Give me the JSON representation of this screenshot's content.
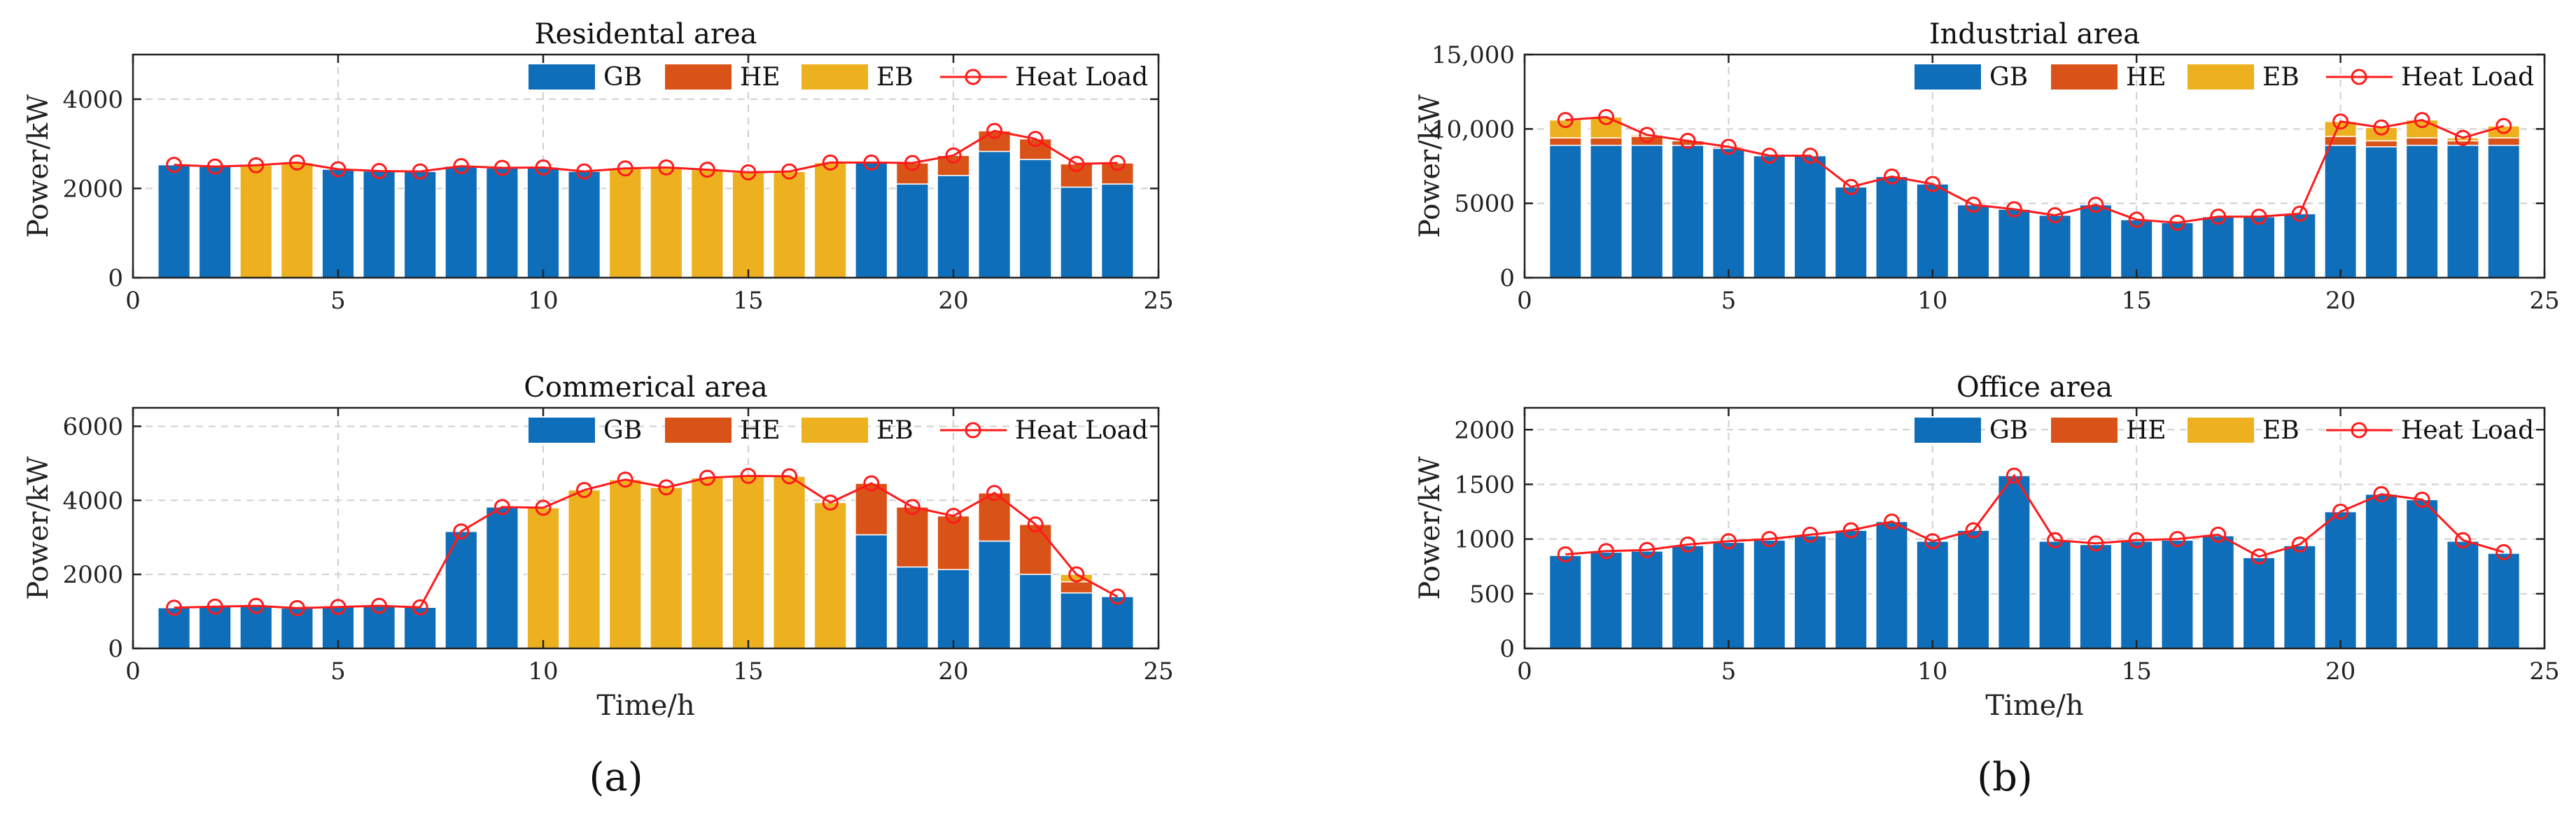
{
  "chart_data": [
    {
      "type": "bar",
      "title": "Residental area",
      "xlabel": "",
      "ylabel": "Power/kW",
      "xlim": [
        0,
        25
      ],
      "ylim": [
        0,
        5000
      ],
      "xticks": [
        0,
        5,
        10,
        15,
        20,
        25
      ],
      "xtick_labels": [
        "0",
        "5",
        "10",
        "15",
        "20",
        "25"
      ],
      "yticks": [
        0,
        2000,
        4000
      ],
      "ytick_labels": [
        "0",
        "2000",
        "4000"
      ],
      "x": [
        1,
        2,
        3,
        4,
        5,
        6,
        7,
        8,
        9,
        10,
        11,
        12,
        13,
        14,
        15,
        16,
        17,
        18,
        19,
        20,
        21,
        22,
        23,
        24
      ],
      "series": [
        {
          "name": "GB",
          "values": [
            2530,
            2490,
            0,
            0,
            2430,
            2390,
            2380,
            2500,
            2460,
            2470,
            2380,
            0,
            0,
            0,
            0,
            0,
            0,
            2580,
            2100,
            2290,
            2830,
            2650,
            2030,
            2100
          ]
        },
        {
          "name": "HE",
          "values": [
            0,
            0,
            0,
            0,
            0,
            0,
            0,
            0,
            0,
            0,
            0,
            0,
            0,
            0,
            0,
            0,
            0,
            0,
            470,
            450,
            460,
            460,
            520,
            470
          ]
        },
        {
          "name": "EB",
          "values": [
            0,
            0,
            2520,
            2580,
            0,
            0,
            0,
            0,
            0,
            0,
            0,
            2450,
            2470,
            2420,
            2360,
            2380,
            2580,
            0,
            0,
            0,
            0,
            0,
            0,
            0
          ]
        }
      ],
      "heat_load": [
        2530,
        2490,
        2520,
        2580,
        2430,
        2390,
        2380,
        2500,
        2460,
        2470,
        2380,
        2450,
        2470,
        2420,
        2360,
        2380,
        2580,
        2580,
        2570,
        2740,
        3290,
        3110,
        2550,
        2570
      ],
      "legend": [
        "GB",
        "HE",
        "EB",
        "Heat Load"
      ],
      "legend_position": "top-right"
    },
    {
      "type": "bar",
      "title": "Industrial area",
      "xlabel": "",
      "ylabel": "Power/kW",
      "xlim": [
        0,
        25
      ],
      "ylim": [
        0,
        15000
      ],
      "xticks": [
        0,
        5,
        10,
        15,
        20,
        25
      ],
      "xtick_labels": [
        "0",
        "5",
        "10",
        "15",
        "20",
        "25"
      ],
      "yticks": [
        0,
        5000,
        10000,
        15000
      ],
      "ytick_labels": [
        "0",
        "5000",
        "10,000",
        "15,000"
      ],
      "x": [
        1,
        2,
        3,
        4,
        5,
        6,
        7,
        8,
        9,
        10,
        11,
        12,
        13,
        14,
        15,
        16,
        17,
        18,
        19,
        20,
        21,
        22,
        23,
        24
      ],
      "series": [
        {
          "name": "GB",
          "values": [
            8900,
            8900,
            8900,
            8900,
            8700,
            8200,
            8200,
            6100,
            6800,
            6300,
            4900,
            4600,
            4200,
            4900,
            3900,
            3700,
            4100,
            4100,
            4300,
            8900,
            8800,
            8900,
            8900,
            8900
          ]
        },
        {
          "name": "HE",
          "values": [
            500,
            500,
            600,
            300,
            100,
            0,
            0,
            0,
            0,
            0,
            0,
            0,
            0,
            0,
            0,
            0,
            0,
            0,
            0,
            600,
            400,
            500,
            300,
            500
          ]
        },
        {
          "name": "EB",
          "values": [
            1200,
            1400,
            100,
            0,
            0,
            0,
            0,
            0,
            0,
            0,
            0,
            0,
            0,
            0,
            0,
            0,
            0,
            0,
            0,
            1000,
            900,
            1200,
            200,
            800
          ]
        }
      ],
      "heat_load": [
        10600,
        10800,
        9600,
        9200,
        8800,
        8200,
        8200,
        6100,
        6800,
        6300,
        4900,
        4600,
        4200,
        4900,
        3900,
        3700,
        4100,
        4100,
        4300,
        10500,
        10100,
        10600,
        9400,
        10200
      ],
      "legend": [
        "GB",
        "HE",
        "EB",
        "Heat Load"
      ],
      "legend_position": "top-right"
    },
    {
      "type": "bar",
      "title": "Commerical area",
      "xlabel": "Time/h",
      "ylabel": "Power/kW",
      "xlim": [
        0,
        25
      ],
      "ylim": [
        0,
        6500
      ],
      "xticks": [
        0,
        5,
        10,
        15,
        20,
        25
      ],
      "xtick_labels": [
        "0",
        "5",
        "10",
        "15",
        "20",
        "25"
      ],
      "yticks": [
        0,
        2000,
        4000,
        6000
      ],
      "ytick_labels": [
        "0",
        "2000",
        "4000",
        "6000"
      ],
      "x": [
        1,
        2,
        3,
        4,
        5,
        6,
        7,
        8,
        9,
        10,
        11,
        12,
        13,
        14,
        15,
        16,
        17,
        18,
        19,
        20,
        21,
        22,
        23,
        24
      ],
      "series": [
        {
          "name": "GB",
          "values": [
            1100,
            1130,
            1150,
            1090,
            1120,
            1150,
            1110,
            3160,
            3820,
            0,
            0,
            0,
            0,
            0,
            0,
            0,
            0,
            3070,
            2200,
            2130,
            2900,
            2000,
            1500,
            1400
          ]
        },
        {
          "name": "HE",
          "values": [
            0,
            0,
            0,
            0,
            0,
            0,
            0,
            0,
            0,
            0,
            0,
            0,
            0,
            0,
            0,
            0,
            0,
            1390,
            1620,
            1450,
            1300,
            1350,
            300,
            0
          ]
        },
        {
          "name": "EB",
          "values": [
            0,
            0,
            0,
            0,
            0,
            0,
            0,
            0,
            0,
            3800,
            4280,
            4560,
            4350,
            4610,
            4660,
            4650,
            3940,
            0,
            0,
            0,
            0,
            0,
            200,
            0
          ]
        }
      ],
      "heat_load": [
        1100,
        1130,
        1150,
        1090,
        1120,
        1150,
        1110,
        3160,
        3820,
        3800,
        4280,
        4560,
        4350,
        4610,
        4660,
        4650,
        3940,
        4460,
        3820,
        3580,
        4200,
        3350,
        2000,
        1400
      ],
      "legend": [
        "GB",
        "HE",
        "EB",
        "Heat Load"
      ],
      "legend_position": "top-right"
    },
    {
      "type": "bar",
      "title": "Office area",
      "xlabel": "Time/h",
      "ylabel": "Power/kW",
      "xlim": [
        0,
        25
      ],
      "ylim": [
        0,
        2200
      ],
      "xticks": [
        0,
        5,
        10,
        15,
        20,
        25
      ],
      "xtick_labels": [
        "0",
        "5",
        "10",
        "15",
        "20",
        "25"
      ],
      "yticks": [
        0,
        500,
        1000,
        1500,
        2000
      ],
      "ytick_labels": [
        "0",
        "500",
        "1000",
        "1500",
        "2000"
      ],
      "x": [
        1,
        2,
        3,
        4,
        5,
        6,
        7,
        8,
        9,
        10,
        11,
        12,
        13,
        14,
        15,
        16,
        17,
        18,
        19,
        20,
        21,
        22,
        23,
        24
      ],
      "series": [
        {
          "name": "GB",
          "values": [
            850,
            880,
            890,
            940,
            970,
            990,
            1030,
            1080,
            1160,
            980,
            1080,
            1580,
            980,
            950,
            980,
            990,
            1030,
            830,
            940,
            1250,
            1410,
            1360,
            980,
            870
          ]
        },
        {
          "name": "HE",
          "values": [
            0,
            0,
            0,
            0,
            0,
            0,
            0,
            0,
            0,
            0,
            0,
            0,
            0,
            0,
            0,
            0,
            0,
            0,
            0,
            0,
            0,
            0,
            0,
            0
          ]
        },
        {
          "name": "EB",
          "values": [
            0,
            0,
            0,
            0,
            0,
            0,
            0,
            0,
            0,
            0,
            0,
            0,
            0,
            0,
            0,
            0,
            0,
            0,
            0,
            0,
            0,
            0,
            0,
            0
          ]
        }
      ],
      "heat_load": [
        860,
        890,
        900,
        950,
        980,
        1000,
        1040,
        1080,
        1160,
        980,
        1080,
        1580,
        990,
        960,
        990,
        1000,
        1040,
        840,
        950,
        1250,
        1410,
        1360,
        990,
        880
      ],
      "legend": [
        "GB",
        "HE",
        "EB",
        "Heat Load"
      ],
      "legend_position": "top-right"
    }
  ],
  "colors": {
    "GB": "#0f6eb9",
    "HE": "#d95319",
    "EB": "#edb120",
    "heat_load": "#ff1a1a",
    "grid": "#cfcfcf"
  },
  "subfigure_labels": [
    "(a)",
    "(b)"
  ]
}
